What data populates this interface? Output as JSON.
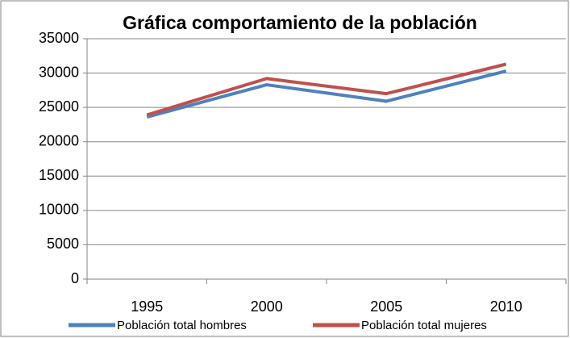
{
  "chart_data": {
    "type": "line",
    "title": "Gráfica comportamiento de la población",
    "categories": [
      "1995",
      "2000",
      "2005",
      "2010"
    ],
    "series": [
      {
        "name": "Población total hombres",
        "color": "#4f81bd",
        "values": [
          23600,
          28300,
          25900,
          30300
        ]
      },
      {
        "name": "Población total mujeres",
        "color": "#c0504d",
        "values": [
          23900,
          29200,
          27000,
          31300
        ]
      }
    ],
    "ylim": [
      0,
      35000
    ],
    "yticks": [
      0,
      5000,
      10000,
      15000,
      20000,
      25000,
      30000,
      35000
    ],
    "grid": true,
    "legend": "bottom"
  }
}
